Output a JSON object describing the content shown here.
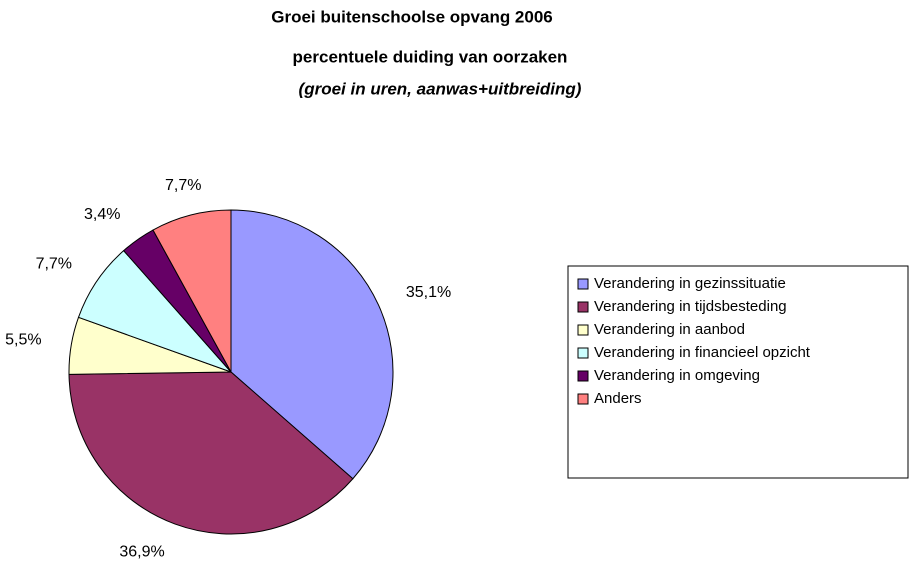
{
  "chart_data": {
    "type": "pie",
    "title": "Groei buitenschoolse opvang 2006",
    "subtitle": "percentuele duiding van oorzaken",
    "note": "(groei in uren, aanwas+uitbreiding)",
    "categories": [
      "Verandering in gezinssituatie",
      "Verandering in tijdsbesteding",
      "Verandering in aanbod",
      "Verandering in financieel opzicht",
      "Verandering in omgeving",
      "Anders"
    ],
    "values": [
      35.1,
      36.9,
      5.5,
      7.7,
      3.4,
      7.7
    ],
    "value_labels": [
      "35,1%",
      "36,9%",
      "5,5%",
      "7,7%",
      "3,4%",
      "7,7%"
    ],
    "colors": [
      "#9999ff",
      "#993366",
      "#ffffcc",
      "#ccffff",
      "#660066",
      "#ff8080"
    ],
    "legend": "right"
  }
}
